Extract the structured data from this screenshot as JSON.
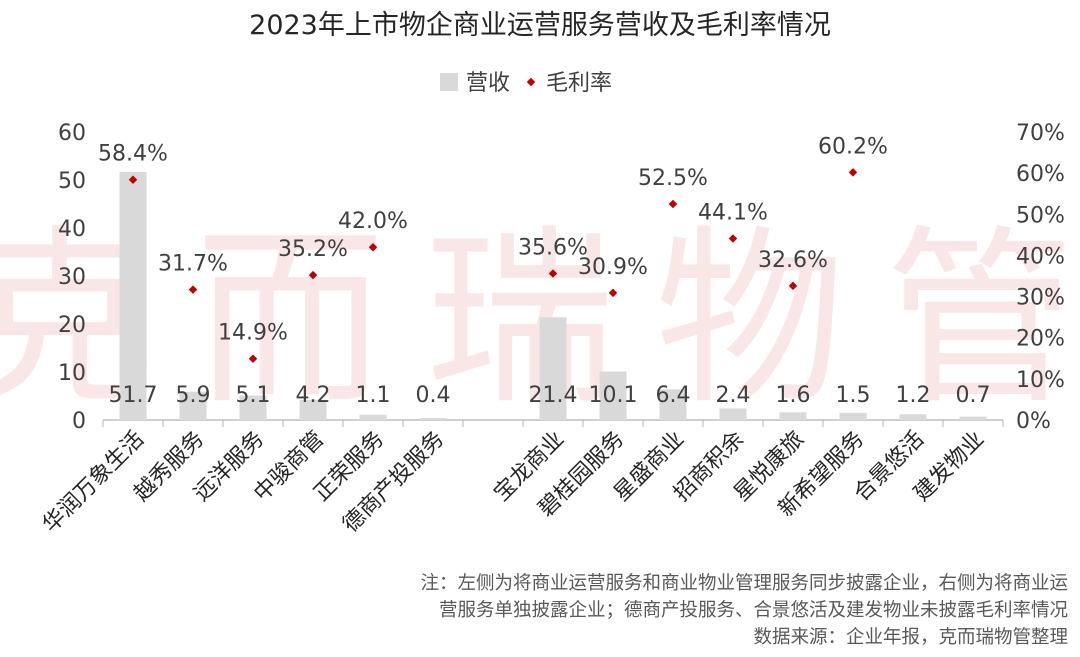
{
  "title": "2023年上市物企商业运营服务营收及毛利率情况",
  "legend": {
    "bar_label": "营收",
    "point_label": "毛利率"
  },
  "watermark": "克而瑞物管",
  "notes": [
    "注：左侧为将商业运营服务和商业物业管理服务同步披露企业，右侧为将商业运",
    "营服务单独披露企业；德商产投服务、合景悠活及建发物业未披露毛利率情况",
    "数据来源：企业年报，克而瑞物管整理"
  ],
  "colors": {
    "bar": "#d9d9d9",
    "point": "#c00000",
    "axis": "#bfbfbf"
  },
  "chart_data": {
    "type": "bar",
    "title": "2023年上市物企商业运营服务营收及毛利率情况",
    "categories": [
      "华润万象生活",
      "越秀服务",
      "远洋服务",
      "中骏商管",
      "正荣服务",
      "德商产投服务",
      "",
      "宝龙商业",
      "碧桂园服务",
      "星盛商业",
      "招商积余",
      "星悦康旅",
      "新希望服务",
      "合景悠活",
      "建发物业"
    ],
    "series": [
      {
        "name": "营收",
        "axis": "left",
        "kind": "bar",
        "values": [
          51.7,
          5.9,
          5.1,
          4.2,
          1.1,
          0.4,
          null,
          21.4,
          10.1,
          6.4,
          2.4,
          1.6,
          1.5,
          1.2,
          0.7
        ],
        "labels": [
          "51.7",
          "5.9",
          "5.1",
          "4.2",
          "1.1",
          "0.4",
          "",
          "21.4",
          "10.1",
          "6.4",
          "2.4",
          "1.6",
          "1.5",
          "1.2",
          "0.7"
        ]
      },
      {
        "name": "毛利率",
        "axis": "right",
        "kind": "scatter",
        "values": [
          58.4,
          31.7,
          14.9,
          35.2,
          42.0,
          null,
          null,
          35.6,
          30.9,
          52.5,
          44.1,
          32.6,
          60.2,
          null,
          null
        ],
        "labels": [
          "58.4%",
          "31.7%",
          "14.9%",
          "35.2%",
          "42.0%",
          "",
          "",
          "35.6%",
          "30.9%",
          "52.5%",
          "44.1%",
          "32.6%",
          "60.2%",
          "",
          ""
        ]
      }
    ],
    "y_left": {
      "ylim": [
        0,
        60
      ],
      "ticks": [
        "0",
        "10",
        "20",
        "30",
        "40",
        "50",
        "60"
      ]
    },
    "y_right": {
      "ylim": [
        0,
        70
      ],
      "ticks": [
        "0%",
        "10%",
        "20%",
        "30%",
        "40%",
        "50%",
        "60%",
        "70%"
      ]
    },
    "legend_position": "top-center",
    "grid": false
  }
}
